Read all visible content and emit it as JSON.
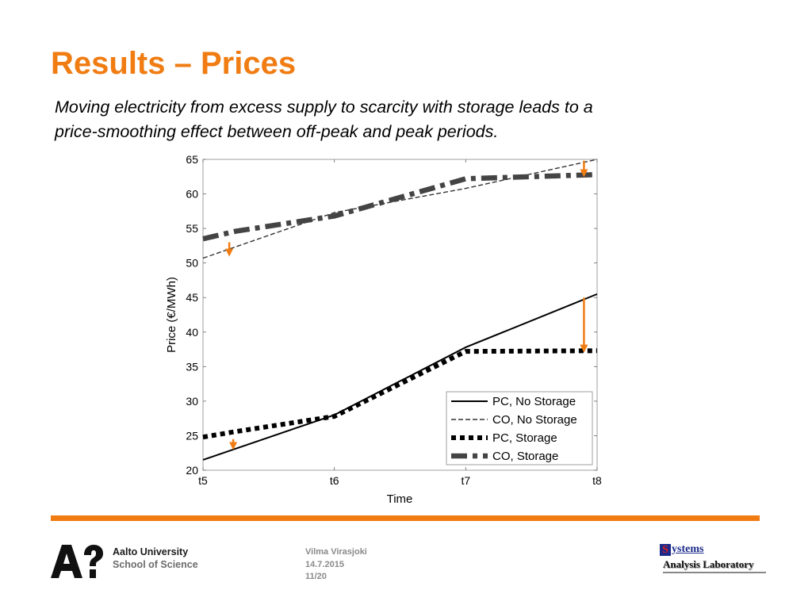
{
  "slide": {
    "title": "Results – Prices",
    "subtitle_line1": "Moving electricity from excess supply to scarcity with storage leads to a",
    "subtitle_line2": "price-smoothing effect between off-peak and peak periods."
  },
  "footer": {
    "university_line1": "Aalto University",
    "university_line2": "School of Science",
    "author": "Vilma Virasjoki",
    "date": "14.7.2015",
    "page": "11/20",
    "lab_initial": "S",
    "lab_rest": "ystems",
    "lab_line2": "Analysis Laboratory",
    "accent_color": "#f07c12"
  },
  "chart_data": {
    "type": "line",
    "xlabel": "Time",
    "ylabel": "Price (€/MWh)",
    "categories": [
      "t5",
      "t6",
      "t7",
      "t8"
    ],
    "ylim": [
      20,
      65
    ],
    "yticks": [
      20,
      25,
      30,
      35,
      40,
      45,
      50,
      55,
      60,
      65
    ],
    "grid": false,
    "legend_position": "bottom-right",
    "series": [
      {
        "name": "PC, No Storage",
        "style": "solid",
        "color": "#000000",
        "x": [
          5,
          6,
          7,
          8
        ],
        "values": [
          21.5,
          28.0,
          37.8,
          45.5
        ]
      },
      {
        "name": "CO, No Storage",
        "style": "dashed",
        "color": "#333333",
        "x": [
          5,
          6,
          7,
          8
        ],
        "values": [
          50.7,
          57.3,
          60.8,
          65.0
        ]
      },
      {
        "name": "PC, Storage",
        "style": "dotted-thick",
        "color": "#000000",
        "x": [
          5,
          5.25,
          6,
          7,
          8
        ],
        "values": [
          24.8,
          25.6,
          27.8,
          37.2,
          37.3
        ]
      },
      {
        "name": "CO, Storage",
        "style": "dashdot-thick",
        "color": "#444444",
        "x": [
          5,
          5.25,
          6,
          7,
          8
        ],
        "values": [
          53.5,
          54.6,
          56.8,
          62.2,
          62.8
        ]
      }
    ],
    "annotations": [
      {
        "kind": "arrow",
        "x": 5.2,
        "from": 53.0,
        "to": 51.5,
        "color": "#f07c12"
      },
      {
        "kind": "arrow",
        "x": 5.23,
        "from": 24.5,
        "to": 23.5,
        "color": "#f07c12"
      },
      {
        "kind": "arrow",
        "x": 7.9,
        "from": 45.0,
        "to": 37.6,
        "color": "#f07c12"
      },
      {
        "kind": "arrow",
        "x": 7.9,
        "from": 64.8,
        "to": 63.0,
        "color": "#f07c12"
      }
    ]
  }
}
